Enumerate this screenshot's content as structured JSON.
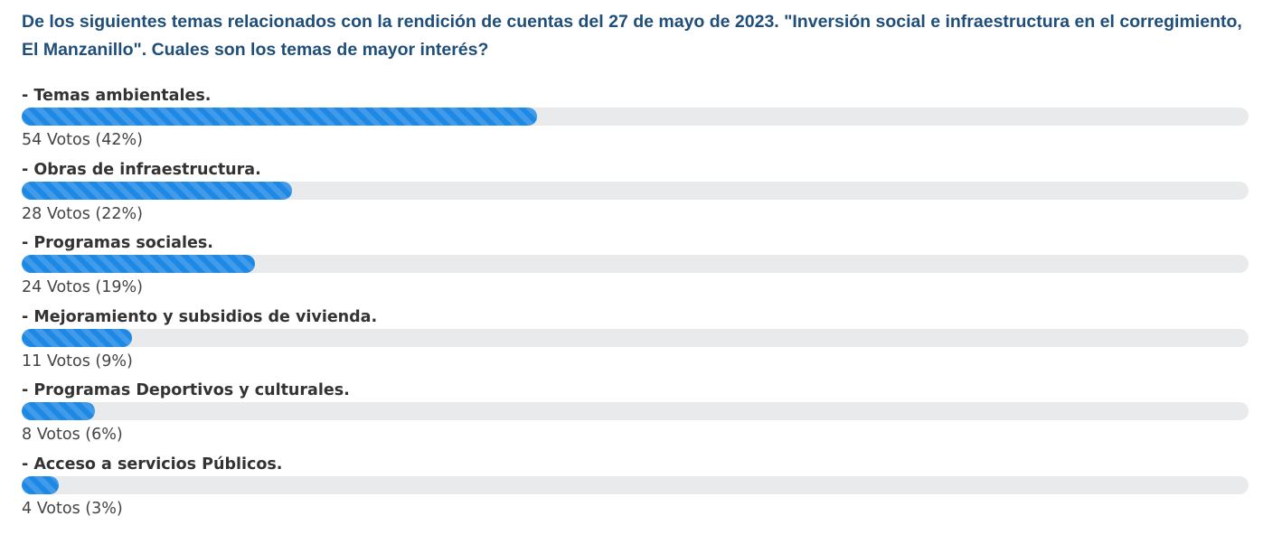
{
  "poll": {
    "question": "De los siguientes temas relacionados con la rendición de cuentas del 27 de mayo de 2023. \"Inversión social e infraestructura en el corregimiento, El Manzanillo\". Cuales son los temas de mayor interés?",
    "bar_color": "#1e88e5",
    "track_color": "#e8eaeb",
    "options": [
      {
        "label": "- Temas ambientales.",
        "votes_text": "54 Votos (42%)",
        "percent": 42
      },
      {
        "label": "- Obras de infraestructura.",
        "votes_text": "28 Votos (22%)",
        "percent": 22
      },
      {
        "label": "- Programas sociales.",
        "votes_text": "24 Votos (19%)",
        "percent": 19
      },
      {
        "label": "- Mejoramiento y subsidios de vivienda.",
        "votes_text": "11 Votos (9%)",
        "percent": 9
      },
      {
        "label": "- Programas Deportivos y culturales.",
        "votes_text": "8 Votos (6%)",
        "percent": 6
      },
      {
        "label": "- Acceso a servicios Públicos.",
        "votes_text": "4 Votos (3%)",
        "percent": 3
      }
    ]
  }
}
